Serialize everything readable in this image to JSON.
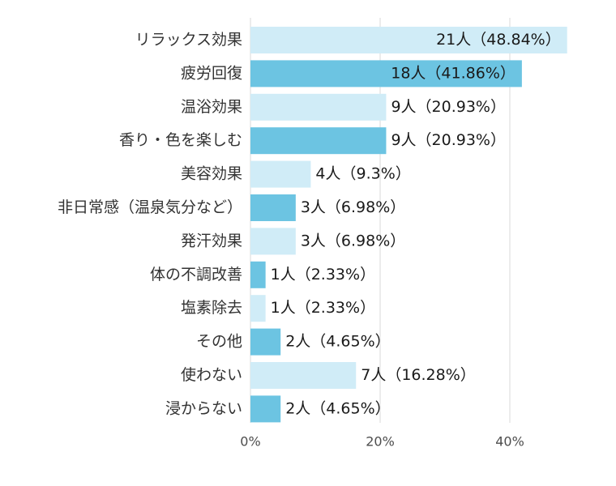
{
  "chart_data": {
    "type": "bar",
    "orientation": "horizontal",
    "title": "",
    "xlabel": "",
    "ylabel": "",
    "xlim": [
      0,
      50
    ],
    "xticks": [
      0,
      20,
      40
    ],
    "tick_labels": [
      "0%",
      "20%",
      "40%"
    ],
    "grid": true,
    "colors": {
      "light": "#d0ecf7",
      "dark": "#6cc4e2"
    },
    "categories": [
      "リラックス効果",
      "疲労回復",
      "温浴効果",
      "香り・色を楽しむ",
      "美容効果",
      "非日常感（温泉気分など）",
      "発汗効果",
      "体の不調改善",
      "塩素除去",
      "その他",
      "使わない",
      "浸からない"
    ],
    "values": [
      48.84,
      41.86,
      20.93,
      20.93,
      9.3,
      6.98,
      6.98,
      2.33,
      2.33,
      4.65,
      16.28,
      4.65
    ],
    "counts": [
      21,
      18,
      9,
      9,
      4,
      3,
      3,
      1,
      1,
      2,
      7,
      2
    ],
    "data_labels": [
      "21人（48.84%）",
      "18人（41.86%）",
      "9人（20.93%）",
      "9人（20.93%）",
      "4人（9.3%）",
      "3人（6.98%）",
      "3人（6.98%）",
      "1人（2.33%）",
      "1人（2.33%）",
      "2人（4.65%）",
      "7人（16.28%）",
      "2人（4.65%）"
    ],
    "bar_shades": [
      "light",
      "dark",
      "light",
      "dark",
      "light",
      "dark",
      "light",
      "dark",
      "light",
      "dark",
      "light",
      "dark"
    ],
    "labels_inside": [
      true,
      true,
      false,
      false,
      false,
      false,
      false,
      false,
      false,
      false,
      false,
      false
    ]
  }
}
